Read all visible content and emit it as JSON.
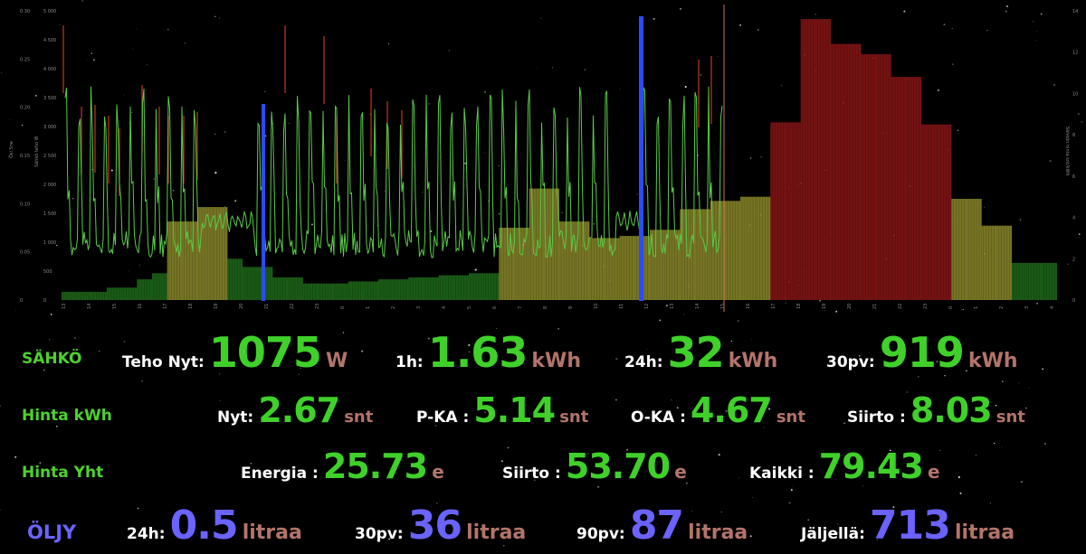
{
  "colors": {
    "green_value": "#3fd12a",
    "unit": "#b3746a",
    "oil": "#6a63ff",
    "bar_green": "#1f6b1a",
    "bar_yellow": "#8c8a2a",
    "bar_red": "#8a1515",
    "line_green": "#5bc94a",
    "spike_red": "#c23a22",
    "marker_blue": "#2a4bff"
  },
  "chart": {
    "left_axis_ticks_a": [
      "0.30",
      "0.25",
      "0.20",
      "0.15",
      "0.10",
      "0.05",
      "0"
    ],
    "left_axis_ticks_b": [
      "5 000",
      "4 500",
      "4 000",
      "3 500",
      "3 000",
      "2 500",
      "2 000",
      "1 500",
      "1 000",
      "500",
      "0"
    ],
    "left_axis_name_a": "Ösi Sne",
    "left_axis_name_b": "Sähkö teho W",
    "right_axis_ticks": [
      "14",
      "12",
      "10",
      "8",
      "6",
      "4",
      "2",
      "0"
    ],
    "right_axis_name": "Sähkön hinta snt/kWh",
    "x_ticks": [
      "13",
      "14",
      "15",
      "16",
      "17",
      "18",
      "19",
      "20",
      "21",
      "22",
      "23",
      "0",
      "1",
      "2",
      "3",
      "4",
      "5",
      "6",
      "7",
      "8",
      "9",
      "10",
      "11",
      "12",
      "13",
      "14",
      "15",
      "16",
      "17",
      "18",
      "19",
      "20",
      "21",
      "22",
      "23",
      "0",
      "1",
      "2",
      "3",
      "4"
    ]
  },
  "chart_data": {
    "type": "bar",
    "price_bars_snt": [
      0.4,
      0.4,
      0.4,
      0.6,
      0.6,
      1.0,
      1.3,
      3.8,
      3.8,
      4.5,
      4.5,
      2.0,
      1.6,
      1.6,
      1.1,
      1.1,
      0.8,
      0.8,
      0.8,
      0.9,
      0.9,
      1.0,
      1.0,
      1.1,
      1.1,
      1.2,
      1.2,
      1.3,
      1.3,
      3.5,
      3.5,
      5.4,
      5.4,
      3.8,
      3.8,
      3.0,
      3.0,
      3.1,
      3.1,
      3.4,
      3.4,
      4.4,
      4.4,
      4.8,
      4.8,
      5.0,
      5.0,
      8.6,
      8.6,
      13.6,
      13.6,
      12.4,
      12.4,
      11.9,
      11.9,
      10.8,
      10.8,
      8.5,
      8.5,
      4.9,
      4.9,
      3.6,
      3.6,
      1.8,
      1.8,
      1.8
    ]
  },
  "sahko": {
    "label": "SÄHKÖ",
    "teho_label": "Teho Nyt:",
    "teho_value": "1075",
    "teho_unit": "W",
    "h1_label": "1h:",
    "h1_value": "1.63",
    "h1_unit": "kWh",
    "h24_label": "24h:",
    "h24_value": "32",
    "h24_unit": "kWh",
    "pv30_label": "30pv:",
    "pv30_value": "919",
    "pv30_unit": "kWh"
  },
  "hinta_kwh": {
    "label": "Hinta kWh",
    "nyt_label": "Nyt:",
    "nyt_value": "2.67",
    "nyt_unit": "snt",
    "pka_label": "P-KA :",
    "pka_value": "5.14",
    "pka_unit": "snt",
    "oka_label": "O-KA :",
    "oka_value": "4.67",
    "oka_unit": "snt",
    "siirto_label": "Siirto :",
    "siirto_value": "8.03",
    "siirto_unit": "snt"
  },
  "hinta_yht": {
    "label": "Hinta Yht",
    "energia_label": "Energia :",
    "energia_value": "25.73",
    "energia_unit": "e",
    "siirto_label": "Siirto :",
    "siirto_value": "53.70",
    "siirto_unit": "e",
    "kaikki_label": "Kaikki :",
    "kaikki_value": "79.43",
    "kaikki_unit": "e"
  },
  "oljy": {
    "label": "ÖLJY",
    "h24_label": "24h:",
    "h24_value": "0.5",
    "h24_unit": "litraa",
    "pv30_label": "30pv:",
    "pv30_value": "36",
    "pv30_unit": "litraa",
    "pv90_label": "90pv:",
    "pv90_value": "87",
    "pv90_unit": "litraa",
    "jaljella_label": "Jäljellä:",
    "jaljella_value": "713",
    "jaljella_unit": "litraa"
  }
}
